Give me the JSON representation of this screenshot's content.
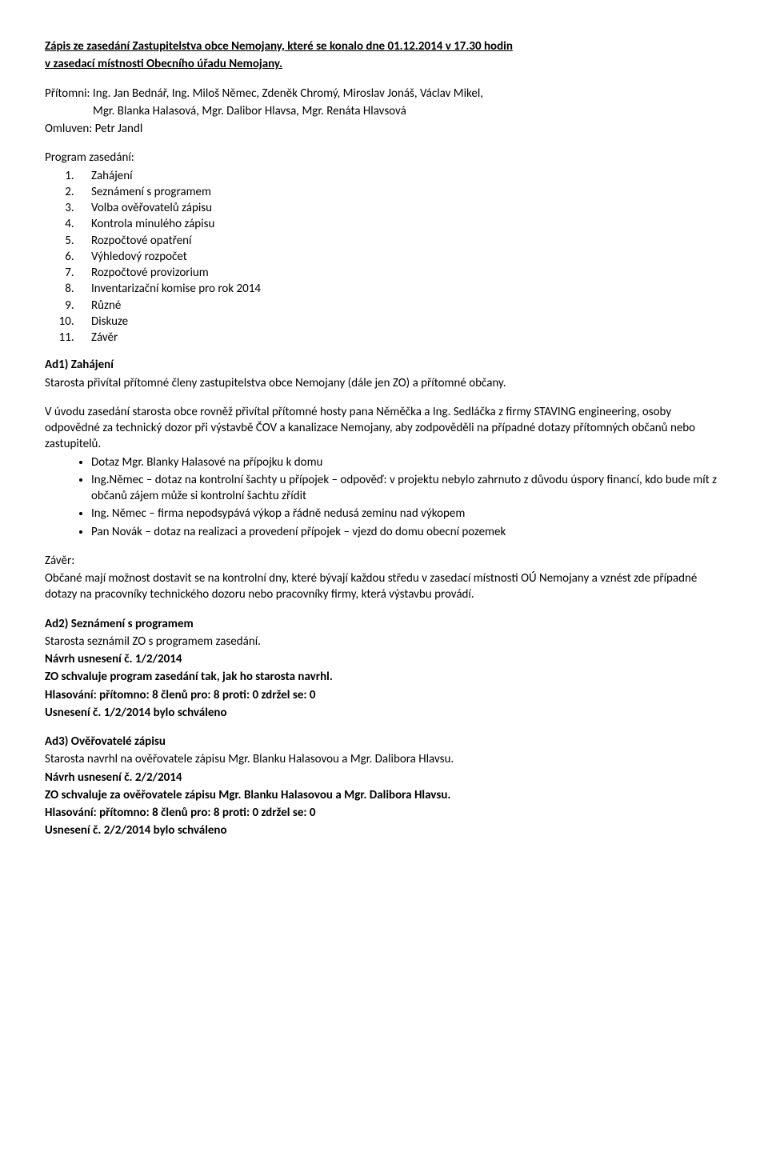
{
  "title_line1": "Zápis ze zasedání Zastupitelstva obce Nemojany, které se konalo dne 01.12.2014 v 17.30 hodin",
  "title_line2": "v zasedací místnosti Obecního úřadu Nemojany.",
  "present_line1": "Přítomni: Ing. Jan Bednář, Ing. Miloš Němec, Zdeněk Chromý, Miroslav Jonáš, Václav Mikel,",
  "present_line2": "Mgr. Blanka Halasová, Mgr. Dalibor Hlavsa, Mgr. Renáta Hlavsová",
  "excused": "Omluven: Petr Jandl",
  "program_heading": "Program zasedání:",
  "program_items": [
    "Zahájení",
    "Seznámení s programem",
    "Volba ověřovatelů zápisu",
    "Kontrola minulého zápisu",
    "Rozpočtové opatření",
    "Výhledový rozpočet",
    "Rozpočtové provizorium",
    "Inventarizační komise pro rok 2014",
    "Různé",
    "Diskuze",
    "Závěr"
  ],
  "ad1": {
    "heading": "Ad1) Zahájení",
    "p1": "Starosta přivítal přítomné členy zastupitelstva obce Nemojany (dále jen ZO) a přítomné občany.",
    "p2": "V úvodu zasedání starosta obce rovněž přivítal přítomné hosty pana Něměčka a Ing. Sedláčka z firmy STAVING engineering, osoby odpovědné za technický dozor při výstavbě ČOV a kanalizace Nemojany, aby zodpověděli na případné dotazy přítomných občanů nebo zastupitelů.",
    "bullets": [
      "Dotaz Mgr. Blanky Halasové na přípojku k domu",
      "Ing.Němec – dotaz na kontrolní šachty u přípojek – odpověď: v projektu nebylo zahrnuto z důvodu úspory financí, kdo bude mít z občanů zájem může si kontrolní šachtu zřídit",
      "Ing. Němec – firma nepodsypává výkop a řádně nedusá zeminu nad výkopem",
      "Pan Novák – dotaz na realizaci a provedení přípojek – vjezd do domu obecní pozemek"
    ],
    "zaver_label": "Závěr:",
    "zaver_text": "Občané mají možnost dostavit se na kontrolní dny, které bývají každou středu v zasedací místnosti OÚ Nemojany a vznést zde případné dotazy na pracovníky technického dozoru nebo pracovníky firmy, která výstavbu provádí."
  },
  "ad2": {
    "heading": "Ad2) Seznámení s programem",
    "p1": "Starosta seznámil ZO s programem zasedání.",
    "draft": "Návrh usnesení č. 1/2/2014",
    "resolution": "ZO schvaluje program zasedání tak, jak ho starosta navrhl.",
    "vote": "Hlasování: přítomno: 8 členů   pro: 8   proti: 0   zdržel se: 0",
    "approved": "Usnesení č. 1/2/2014 bylo schváleno"
  },
  "ad3": {
    "heading": "Ad3)  Ověřovatelé zápisu",
    "p1": "Starosta navrhl na ověřovatele zápisu Mgr. Blanku Halasovou a Mgr. Dalibora Hlavsu.",
    "draft": "Návrh usnesení č. 2/2/2014",
    "resolution": "ZO schvaluje za ověřovatele zápisu Mgr. Blanku Halasovou a Mgr. Dalibora Hlavsu.",
    "vote": "Hlasování: přítomno: 8 členů   pro: 8   proti: 0   zdržel se: 0",
    "approved": "Usnesení č. 2/2/2014 bylo schváleno"
  }
}
